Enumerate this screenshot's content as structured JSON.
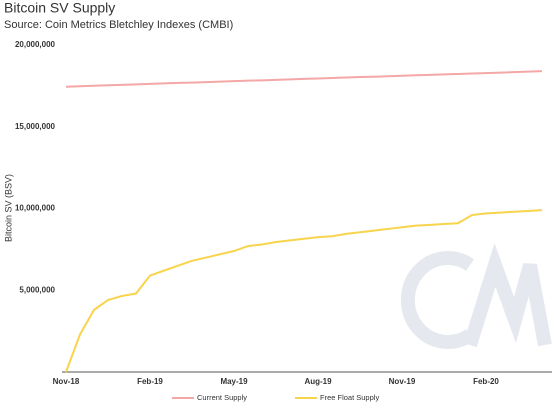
{
  "chart_data": {
    "type": "line",
    "title": "Bitcoin SV Supply",
    "subtitle": "Source: Coin Metrics Bletchley Indexes (CMBI)",
    "y_label": "Bitcoin SV (BSV)",
    "categories": [
      "Nov-18",
      null,
      null,
      null,
      null,
      null,
      "Feb-19",
      null,
      null,
      null,
      null,
      null,
      "May-19",
      null,
      null,
      null,
      null,
      null,
      "Aug-19",
      null,
      null,
      null,
      null,
      null,
      "Nov-19",
      null,
      null,
      null,
      null,
      null,
      "Feb-20",
      null,
      null,
      null,
      null
    ],
    "series": [
      {
        "name": "Current Supply",
        "color": "#f4a7a7",
        "values": [
          17450000,
          17480000,
          17510000,
          17540000,
          17560000,
          17590000,
          17620000,
          17650000,
          17680000,
          17700000,
          17730000,
          17760000,
          17790000,
          17820000,
          17840000,
          17870000,
          17900000,
          17930000,
          17950000,
          17980000,
          18010000,
          18040000,
          18060000,
          18090000,
          18120000,
          18150000,
          18170000,
          18200000,
          18230000,
          18260000,
          18280000,
          18310000,
          18340000,
          18370000,
          18400000
        ]
      },
      {
        "name": "Free Float Supply",
        "color": "#f8d44c",
        "values": [
          0,
          2300000,
          3800000,
          4400000,
          4650000,
          4800000,
          5900000,
          6200000,
          6500000,
          6800000,
          7000000,
          7200000,
          7400000,
          7700000,
          7800000,
          7950000,
          8050000,
          8150000,
          8250000,
          8300000,
          8450000,
          8550000,
          8650000,
          8750000,
          8850000,
          8950000,
          9000000,
          9050000,
          9100000,
          9600000,
          9700000,
          9750000,
          9800000,
          9850000,
          9900000
        ]
      }
    ],
    "ylim": [
      0,
      20000000
    ],
    "yticks": [
      {
        "value": 5000000,
        "label": "5,000,000"
      },
      {
        "value": 10000000,
        "label": "10,000,000"
      },
      {
        "value": 15000000,
        "label": "15,000,000"
      },
      {
        "value": 20000000,
        "label": "20,000,000"
      }
    ],
    "legend": "bottom"
  }
}
